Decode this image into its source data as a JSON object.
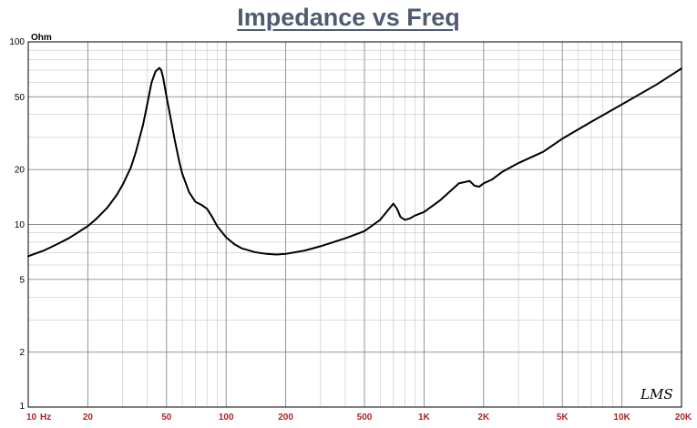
{
  "chart_data": {
    "type": "line",
    "title": "Impedance vs Freq",
    "ylabel": "Ohm",
    "x_scale": "log",
    "y_scale": "log",
    "xlim": [
      10,
      20000
    ],
    "ylim": [
      1,
      100
    ],
    "grid": true,
    "x_ticks": [
      {
        "value": 10,
        "label": "10"
      },
      {
        "value": 20,
        "label": "20"
      },
      {
        "value": 50,
        "label": "50"
      },
      {
        "value": 100,
        "label": "100"
      },
      {
        "value": 200,
        "label": "200"
      },
      {
        "value": 500,
        "label": "500"
      },
      {
        "value": 1000,
        "label": "1K"
      },
      {
        "value": 2000,
        "label": "2K"
      },
      {
        "value": 5000,
        "label": "5K"
      },
      {
        "value": 10000,
        "label": "10K"
      },
      {
        "value": 20000,
        "label": "20K"
      }
    ],
    "x_unit": "Hz",
    "y_ticks": [
      {
        "value": 100,
        "label": "100"
      },
      {
        "value": 50,
        "label": "50"
      },
      {
        "value": 20,
        "label": "20"
      },
      {
        "value": 10,
        "label": "10"
      },
      {
        "value": 5,
        "label": "5"
      },
      {
        "value": 2,
        "label": "2"
      },
      {
        "value": 1,
        "label": "1"
      }
    ],
    "series": [
      {
        "color": "#000000",
        "x": [
          10,
          12,
          14,
          16,
          18,
          20,
          22,
          25,
          28,
          30,
          33,
          35,
          38,
          40,
          42,
          44,
          46,
          47,
          48,
          50,
          52,
          55,
          58,
          60,
          65,
          70,
          75,
          80,
          85,
          90,
          100,
          110,
          120,
          140,
          160,
          180,
          200,
          250,
          300,
          400,
          500,
          600,
          650,
          700,
          730,
          760,
          800,
          850,
          900,
          1000,
          1200,
          1500,
          1700,
          1800,
          1900,
          2000,
          2200,
          2500,
          3000,
          4000,
          5000,
          7000,
          10000,
          15000,
          20000
        ],
        "y": [
          6.7,
          7.2,
          7.8,
          8.4,
          9.1,
          9.8,
          10.7,
          12.3,
          14.5,
          16.5,
          20.5,
          25,
          35,
          46,
          60,
          69,
          72,
          70,
          64,
          50,
          40,
          29,
          22,
          19,
          15,
          13.3,
          12.8,
          12.2,
          11.0,
          9.8,
          8.5,
          7.8,
          7.4,
          7.05,
          6.9,
          6.85,
          6.9,
          7.2,
          7.6,
          8.4,
          9.2,
          10.6,
          11.8,
          13.0,
          12.2,
          11.0,
          10.6,
          10.8,
          11.2,
          11.7,
          13.5,
          16.8,
          17.3,
          16.3,
          16.1,
          16.8,
          17.6,
          19.5,
          21.7,
          25.0,
          29.5,
          36.5,
          45.5,
          58.5,
          71.5
        ]
      }
    ]
  },
  "logo_text": "LMS",
  "colors": {
    "title": "#4e5b73",
    "x_tick_labels": "#b22222",
    "curve": "#000000",
    "grid": "#b8b8b8",
    "frame": "#000000"
  }
}
